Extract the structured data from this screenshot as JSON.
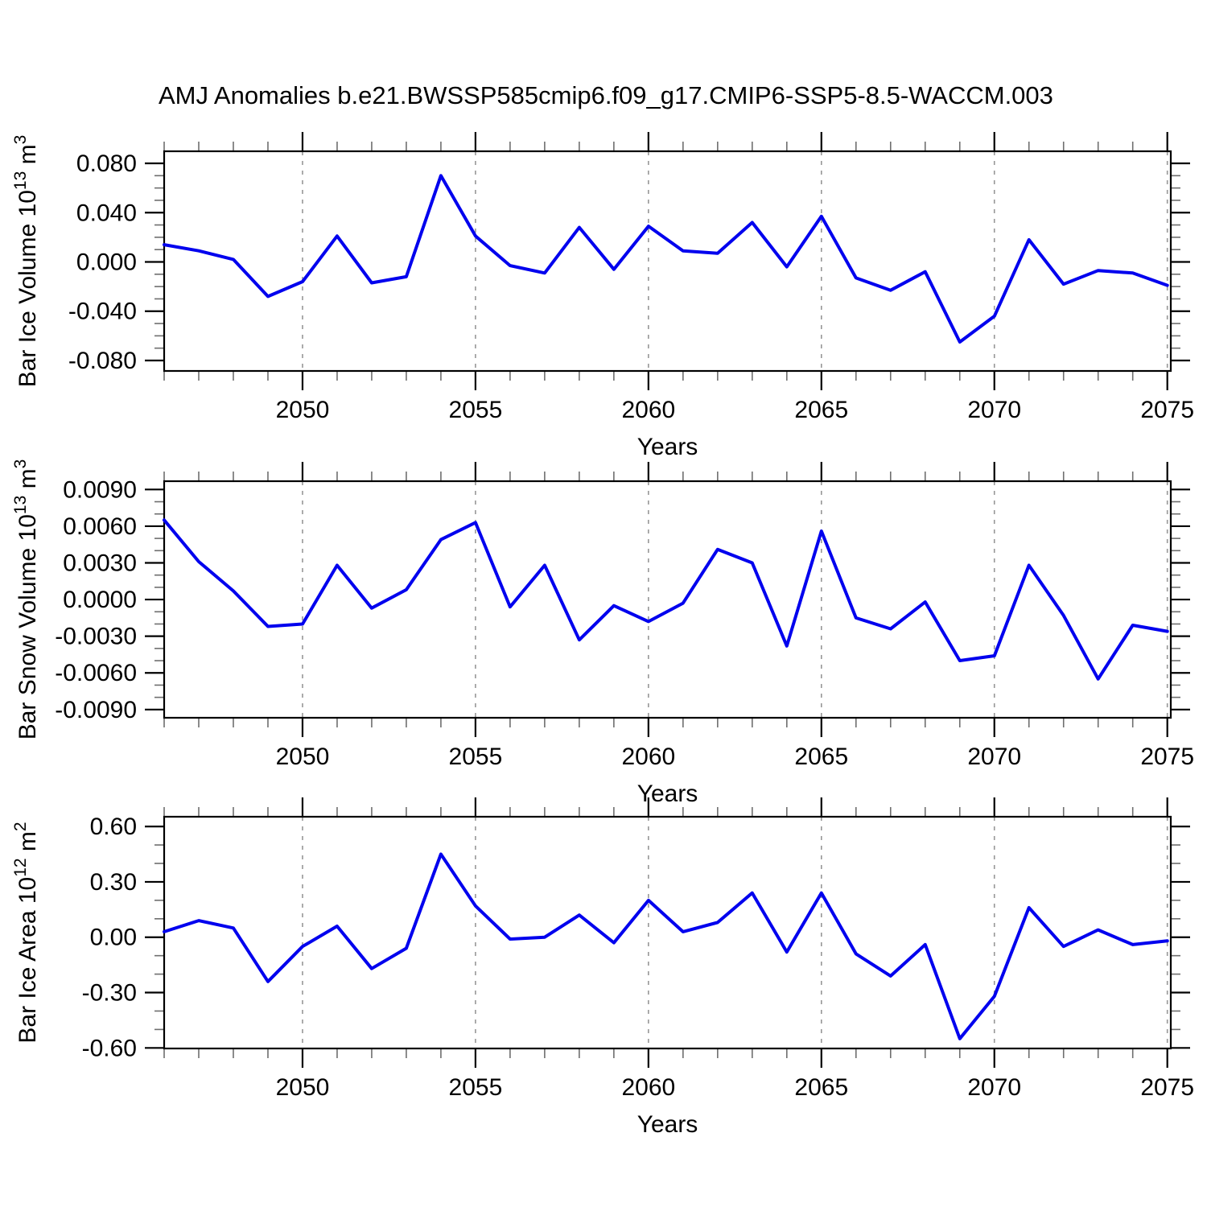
{
  "page": {
    "title": "AMJ Anomalies b.e21.BWSSP585cmip6.f09_g17.CMIP6-SSP5-8.5-WACCM.003",
    "background_color": "#ffffff"
  },
  "chart_data": {
    "type": "line",
    "title": "AMJ Anomalies b.e21.BWSSP585cmip6.f09_g17.CMIP6-SSP5-8.5-WACCM.003",
    "line_color": "#0000EE",
    "grid_color": "#979797",
    "grid_on": true,
    "legend": "none",
    "xlabel": "Years",
    "xlim": [
      2046,
      2075.1
    ],
    "x": [
      2046,
      2047,
      2048,
      2049,
      2050,
      2051,
      2052,
      2053,
      2054,
      2055,
      2056,
      2057,
      2058,
      2059,
      2060,
      2061,
      2062,
      2063,
      2064,
      2065,
      2066,
      2067,
      2068,
      2069,
      2070,
      2071,
      2072,
      2073,
      2074,
      2075
    ],
    "xticks": [
      {
        "v": 2050,
        "label": "2050"
      },
      {
        "v": 2055,
        "label": "2055"
      },
      {
        "v": 2060,
        "label": "2060"
      },
      {
        "v": 2065,
        "label": "2065"
      },
      {
        "v": 2070,
        "label": "2070"
      },
      {
        "v": 2075,
        "label": "2075"
      }
    ],
    "xminor_step": 1,
    "grid_years": [
      2050,
      2055,
      2060,
      2065,
      2070,
      2075
    ],
    "panels": [
      {
        "id": "ice-volume",
        "ylabel": "Bar Ice Volume 10^13 m^3",
        "ylabel_parts": [
          [
            "Bar Ice Volume 10",
            0
          ],
          [
            "13",
            1
          ],
          [
            " m",
            0
          ],
          [
            "3",
            1
          ]
        ],
        "ylim": [
          -0.0885,
          0.0898
        ],
        "yminor_step": 0.01,
        "yticks": [
          {
            "v": 0.08,
            "label": "0.080"
          },
          {
            "v": 0.04,
            "label": "0.040"
          },
          {
            "v": 0.0,
            "label": "0.000"
          },
          {
            "v": -0.04,
            "label": "-0.040"
          },
          {
            "v": -0.08,
            "label": "-0.080"
          }
        ],
        "values": [
          0.014,
          0.009,
          0.002,
          -0.028,
          -0.016,
          0.021,
          -0.017,
          -0.012,
          0.07,
          0.021,
          -0.003,
          -0.009,
          0.028,
          -0.006,
          0.029,
          0.009,
          0.007,
          0.032,
          -0.004,
          0.037,
          -0.013,
          -0.023,
          -0.008,
          -0.065,
          -0.044,
          0.018,
          -0.018,
          -0.007,
          -0.009,
          -0.019
        ]
      },
      {
        "id": "snow-volume",
        "ylabel": "Bar Snow Volume 10^13 m^3",
        "ylabel_parts": [
          [
            "Bar Snow Volume 10",
            0
          ],
          [
            "13",
            1
          ],
          [
            " m",
            0
          ],
          [
            "3",
            1
          ]
        ],
        "ylim": [
          -0.00967,
          0.00968
        ],
        "yminor_step": 0.001,
        "yticks": [
          {
            "v": 0.009,
            "label": "0.0090"
          },
          {
            "v": 0.006,
            "label": "0.0060"
          },
          {
            "v": 0.003,
            "label": "0.0030"
          },
          {
            "v": 0.0,
            "label": "0.0000"
          },
          {
            "v": -0.003,
            "label": "-0.0030"
          },
          {
            "v": -0.006,
            "label": "-0.0060"
          },
          {
            "v": -0.009,
            "label": "-0.0090"
          }
        ],
        "values": [
          0.0065,
          0.0031,
          0.0007,
          -0.0022,
          -0.002,
          0.0028,
          -0.0007,
          0.0008,
          0.0049,
          0.0063,
          -0.0006,
          0.0028,
          -0.0033,
          -0.0005,
          -0.0018,
          -0.0003,
          0.0041,
          0.003,
          -0.0038,
          0.0056,
          -0.0015,
          -0.0024,
          -0.0002,
          -0.005,
          -0.0046,
          0.0028,
          -0.0013,
          -0.0065,
          -0.0021,
          -0.0026
        ]
      },
      {
        "id": "ice-area",
        "ylabel": "Bar Ice Area 10^12 m^2",
        "ylabel_parts": [
          [
            "Bar Ice Area 10",
            0
          ],
          [
            "12",
            1
          ],
          [
            " m",
            0
          ],
          [
            "2",
            1
          ]
        ],
        "ylim": [
          -0.603,
          0.653
        ],
        "yminor_step": 0.1,
        "yticks": [
          {
            "v": 0.6,
            "label": "0.60"
          },
          {
            "v": 0.3,
            "label": "0.30"
          },
          {
            "v": 0.0,
            "label": "0.00"
          },
          {
            "v": -0.3,
            "label": "-0.30"
          },
          {
            "v": -0.6,
            "label": "-0.60"
          }
        ],
        "values": [
          0.03,
          0.09,
          0.05,
          -0.24,
          -0.05,
          0.06,
          -0.17,
          -0.06,
          0.45,
          0.17,
          -0.01,
          0.0,
          0.12,
          -0.03,
          0.2,
          0.03,
          0.08,
          0.24,
          -0.08,
          0.24,
          -0.09,
          -0.21,
          -0.04,
          -0.55,
          -0.32,
          0.16,
          -0.05,
          0.04,
          -0.04,
          -0.02
        ]
      }
    ]
  }
}
